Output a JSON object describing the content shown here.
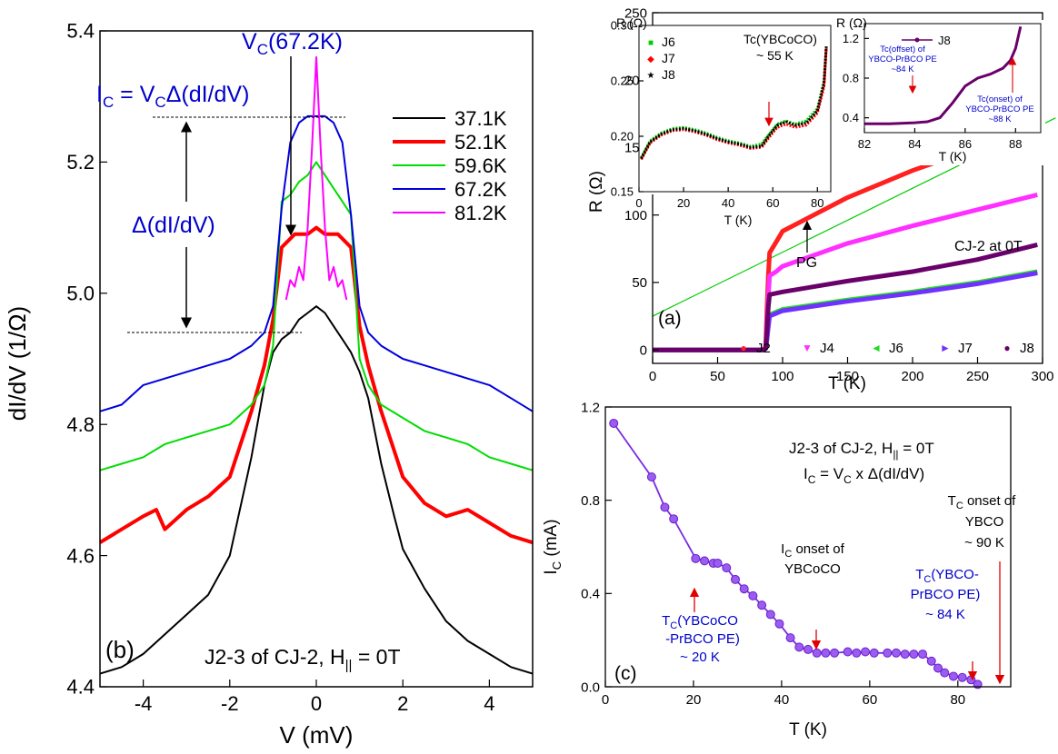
{
  "chart_data": [
    {
      "type": "line",
      "panel": "(b)",
      "xlabel": "V (mV)",
      "ylabel": "dI/dV (1/Ω)",
      "xlim": [
        -5,
        5
      ],
      "ylim": [
        4.4,
        5.4
      ],
      "xticks": [
        -4,
        -2,
        0,
        2,
        4
      ],
      "yticks": [
        4.4,
        4.6,
        4.8,
        5.0,
        5.2,
        5.4
      ],
      "legend_position": "top-right",
      "annotations": {
        "vc_label": "V",
        "vc_sub": "C",
        "vc_rest": "(67.2K)",
        "ic_eq_i": "I",
        "ic_eq_sub": "C",
        "ic_eq_mid": " = V",
        "ic_eq_sub2": "C",
        "ic_eq_rest": "Δ(dI/dV)",
        "delta": "Δ(dI/dV)",
        "panel_label": "(b)",
        "caption_a": "J2-3 of CJ-2, H",
        "caption_sub": "||",
        "caption_b": " = 0T"
      },
      "series": [
        {
          "name": "37.1K",
          "color": "#000000",
          "width": 2,
          "x": [
            -5,
            -4.5,
            -4,
            -3.5,
            -3,
            -2.5,
            -2,
            -1.8,
            -1.5,
            -1.2,
            -1,
            -0.8,
            -0.6,
            -0.4,
            -0.2,
            0,
            0.2,
            0.4,
            0.6,
            0.8,
            1,
            1.2,
            1.5,
            1.8,
            2,
            2.5,
            3,
            3.5,
            4,
            4.5,
            5
          ],
          "values": [
            4.42,
            4.43,
            4.45,
            4.48,
            4.51,
            4.54,
            4.6,
            4.66,
            4.75,
            4.86,
            4.91,
            4.93,
            4.94,
            4.96,
            4.97,
            4.98,
            4.97,
            4.95,
            4.93,
            4.91,
            4.88,
            4.84,
            4.74,
            4.66,
            4.61,
            4.55,
            4.5,
            4.47,
            4.45,
            4.43,
            4.42
          ]
        },
        {
          "name": "52.1K",
          "color": "#ff0000",
          "width": 4,
          "x": [
            -5,
            -4.5,
            -4,
            -3.7,
            -3.5,
            -3,
            -2.5,
            -2,
            -1.8,
            -1.5,
            -1.2,
            -1,
            -0.8,
            -0.5,
            -0.2,
            0,
            0.2,
            0.5,
            0.8,
            1,
            1.2,
            1.5,
            1.8,
            2,
            2.5,
            3,
            3.5,
            4,
            4.5,
            5
          ],
          "values": [
            4.62,
            4.64,
            4.66,
            4.67,
            4.64,
            4.67,
            4.69,
            4.72,
            4.76,
            4.82,
            4.89,
            4.96,
            5.07,
            5.09,
            5.09,
            5.1,
            5.09,
            5.09,
            5.07,
            4.95,
            4.89,
            4.82,
            4.76,
            4.72,
            4.68,
            4.66,
            4.67,
            4.65,
            4.63,
            4.62
          ]
        },
        {
          "name": "59.6K",
          "color": "#00dd00",
          "width": 2,
          "x": [
            -5,
            -4.5,
            -4,
            -3.5,
            -3,
            -2.5,
            -2,
            -1.5,
            -1.2,
            -1,
            -0.8,
            -0.6,
            -0.4,
            -0.2,
            0,
            0.2,
            0.4,
            0.6,
            0.8,
            1,
            1.2,
            1.5,
            2,
            2.5,
            3,
            3.5,
            4,
            4.5,
            5
          ],
          "values": [
            4.73,
            4.74,
            4.75,
            4.77,
            4.78,
            4.79,
            4.8,
            4.83,
            4.86,
            4.92,
            5.14,
            5.15,
            5.17,
            5.18,
            5.2,
            5.18,
            5.16,
            5.14,
            5.12,
            4.9,
            4.86,
            4.83,
            4.81,
            4.79,
            4.78,
            4.77,
            4.75,
            4.74,
            4.73
          ]
        },
        {
          "name": "67.2K",
          "color": "#0000dd",
          "width": 2,
          "x": [
            -5,
            -4.5,
            -4,
            -3.5,
            -3,
            -2.5,
            -2,
            -1.5,
            -1.2,
            -1,
            -0.8,
            -0.6,
            -0.4,
            -0.2,
            0,
            0.2,
            0.4,
            0.6,
            0.8,
            1,
            1.2,
            1.5,
            2,
            2.5,
            3,
            3.5,
            4,
            4.5,
            5
          ],
          "values": [
            4.82,
            4.83,
            4.86,
            4.87,
            4.88,
            4.89,
            4.9,
            4.92,
            4.94,
            4.98,
            5.13,
            5.23,
            5.26,
            5.27,
            5.27,
            5.27,
            5.26,
            5.23,
            5.12,
            4.98,
            4.94,
            4.92,
            4.9,
            4.89,
            4.88,
            4.87,
            4.86,
            4.84,
            4.82
          ]
        },
        {
          "name": "81.2K",
          "color": "#ff00ff",
          "width": 2,
          "x": [
            -0.7,
            -0.6,
            -0.5,
            -0.4,
            -0.3,
            -0.2,
            -0.1,
            0,
            0.1,
            0.2,
            0.3,
            0.4,
            0.5,
            0.6,
            0.7
          ],
          "values": [
            4.99,
            5.02,
            5.01,
            5.04,
            5.02,
            5.1,
            5.22,
            5.36,
            5.22,
            5.1,
            5.02,
            5.04,
            5.01,
            5.02,
            4.99
          ]
        }
      ]
    },
    {
      "type": "scatter",
      "panel": "(a)",
      "xlabel": "T (K)",
      "ylabel": "R (Ω)",
      "xlim": [
        0,
        300
      ],
      "ylim": [
        -10,
        250
      ],
      "xticks": [
        0,
        50,
        100,
        150,
        200,
        250,
        300
      ],
      "yticks": [
        0,
        50,
        100,
        150,
        200,
        250
      ],
      "annotations": {
        "panel_label": "(a)",
        "cj2": "CJ-2 at 0T",
        "pg": "PG"
      },
      "series": [
        {
          "name": "J2",
          "color": "#ff2020",
          "marker": "●",
          "x": [
            0,
            85,
            87,
            88,
            89,
            90,
            95,
            100,
            150,
            200,
            250,
            296
          ],
          "values": [
            0,
            0,
            2,
            30,
            55,
            72,
            80,
            88,
            113,
            133,
            150,
            168
          ]
        },
        {
          "name": "J4",
          "color": "#ff30ff",
          "marker": "▼",
          "x": [
            0,
            85,
            87,
            88,
            89,
            90,
            95,
            100,
            150,
            200,
            250,
            296
          ],
          "values": [
            0,
            0,
            1,
            20,
            40,
            55,
            58,
            62,
            79,
            92,
            104,
            115
          ]
        },
        {
          "name": "J6",
          "color": "#20dd20",
          "marker": "◄",
          "x": [
            0,
            85,
            87,
            88,
            89,
            90,
            100,
            150,
            200,
            250,
            296
          ],
          "values": [
            0,
            0,
            1,
            8,
            18,
            26,
            30,
            37,
            43,
            50,
            58
          ]
        },
        {
          "name": "J7",
          "color": "#7030ff",
          "marker": "►",
          "x": [
            0,
            85,
            87,
            88,
            89,
            90,
            100,
            150,
            200,
            250,
            296
          ],
          "values": [
            0,
            0,
            1,
            8,
            17,
            25,
            29,
            36,
            42,
            49,
            57
          ]
        },
        {
          "name": "J8",
          "color": "#6a006a",
          "marker": "●",
          "x": [
            0,
            85,
            87,
            88,
            89,
            90,
            100,
            150,
            200,
            250,
            296
          ],
          "values": [
            0,
            0,
            1,
            15,
            32,
            41,
            43,
            51,
            58,
            67,
            78
          ]
        }
      ],
      "fit_line": {
        "color": "#00cc00",
        "x": [
          0,
          310
        ],
        "values": [
          25,
          172
        ]
      },
      "insets": [
        {
          "type": "scatter",
          "xlabel": "T (K)",
          "ylabel": "R (Ω)",
          "xlim": [
            0,
            86
          ],
          "ylim": [
            0.15,
            0.3
          ],
          "xticks": [
            0,
            20,
            40,
            60,
            80
          ],
          "yticks": [
            0.15,
            0.2,
            0.25,
            0.3
          ],
          "annotation_line1": "Tc(YBCoCO)",
          "annotation_line2": "~ 55 K",
          "series": [
            {
              "name": "J6",
              "color": "#00cc00",
              "marker": "■",
              "x": [
                1,
                5,
                10,
                15,
                20,
                25,
                30,
                35,
                40,
                45,
                50,
                55,
                58,
                62,
                66,
                70,
                75,
                80,
                83,
                84
              ],
              "values": [
                0.181,
                0.196,
                0.203,
                0.207,
                0.208,
                0.206,
                0.203,
                0.199,
                0.196,
                0.194,
                0.191,
                0.193,
                0.201,
                0.211,
                0.214,
                0.211,
                0.214,
                0.225,
                0.25,
                0.282
              ]
            },
            {
              "name": "J7",
              "color": "#ff0000",
              "marker": "◆",
              "x": [
                1,
                5,
                10,
                15,
                20,
                25,
                30,
                35,
                40,
                45,
                50,
                55,
                58,
                62,
                66,
                70,
                75,
                80,
                83,
                84
              ],
              "values": [
                0.179,
                0.194,
                0.201,
                0.205,
                0.206,
                0.204,
                0.201,
                0.197,
                0.194,
                0.192,
                0.189,
                0.19,
                0.198,
                0.208,
                0.211,
                0.208,
                0.21,
                0.221,
                0.245,
                0.28
              ]
            },
            {
              "name": "J8",
              "color": "#000000",
              "marker": "★",
              "x": [
                1,
                5,
                10,
                15,
                20,
                25,
                30,
                35,
                40,
                45,
                50,
                55,
                58,
                62,
                66,
                70,
                75,
                80,
                83,
                84
              ],
              "values": [
                0.18,
                0.195,
                0.202,
                0.206,
                0.207,
                0.205,
                0.202,
                0.198,
                0.195,
                0.193,
                0.19,
                0.191,
                0.2,
                0.21,
                0.213,
                0.21,
                0.212,
                0.223,
                0.248,
                0.281
              ]
            }
          ]
        },
        {
          "type": "line",
          "xlabel": "T (K)",
          "ylabel": "R (Ω)",
          "xlim": [
            82,
            89
          ],
          "ylim": [
            0.25,
            1.35
          ],
          "xticks": [
            82,
            84,
            86,
            88
          ],
          "yticks": [
            0.4,
            0.8,
            1.2
          ],
          "offset_label": [
            "Tc(offset) of",
            "YBCO-PrBCO PE",
            "~84 K"
          ],
          "onset_label": [
            "Tc(onset) of",
            "YBCO-PrBCO PE",
            "~88 K"
          ],
          "series": [
            {
              "name": "J8",
              "color": "#6a006a",
              "x": [
                82,
                83,
                84,
                84.5,
                85,
                85.5,
                86,
                86.5,
                87,
                87.5,
                87.8,
                88,
                88.2
              ],
              "values": [
                0.34,
                0.34,
                0.35,
                0.36,
                0.4,
                0.55,
                0.72,
                0.8,
                0.84,
                0.9,
                0.98,
                1.1,
                1.32
              ]
            }
          ]
        }
      ]
    },
    {
      "type": "line",
      "panel": "(c)",
      "xlabel": "T (K)",
      "ylabel": "I_C (mA)",
      "xlim": [
        0,
        92
      ],
      "ylim": [
        0,
        1.2
      ],
      "xticks": [
        0,
        20,
        40,
        60,
        80
      ],
      "yticks": [
        0.0,
        0.4,
        0.8,
        1.2
      ],
      "annotations": {
        "panel_label": "(c)",
        "title1_a": "J2-3 of CJ-2, H",
        "title1_sub": "||",
        "title1_b": " = 0T",
        "title2_a": "I",
        "title2_sub": "C",
        "title2_b": " = V",
        "title2_sub2": "C",
        "title2_c": " x Δ(dI/dV)",
        "ybcoco_a": [
          "T",
          "C",
          "(YBCoCO"
        ],
        "ybcoco_b": "-PrBCO PE)",
        "ybcoco_c": "~ 20 K",
        "ic_onset_a": [
          "I",
          "C",
          " onset of"
        ],
        "ic_onset_b": "YBCoCO",
        "prbco_a": [
          "T",
          "C",
          "(YBCO-"
        ],
        "prbco_b": "PrBCO PE)",
        "prbco_c": "~ 84 K",
        "tc_onset_a": [
          "T",
          "C",
          " onset of"
        ],
        "tc_onset_b": "YBCO",
        "tc_onset_c": "~ 90 K"
      },
      "series": [
        {
          "name": "I_C",
          "color": "#7a2be2",
          "x": [
            1.9,
            10.5,
            13.5,
            15.5,
            20.5,
            22.5,
            24.5,
            25.5,
            27.5,
            29.5,
            31.5,
            33.5,
            35.5,
            37.5,
            39.5,
            42,
            44,
            46,
            48,
            50,
            52,
            55,
            57,
            59,
            61,
            64,
            66,
            68,
            70,
            72,
            74,
            75.5,
            77,
            79,
            81,
            83,
            84.5
          ],
          "values": [
            1.13,
            0.9,
            0.77,
            0.72,
            0.55,
            0.54,
            0.53,
            0.53,
            0.51,
            0.46,
            0.42,
            0.39,
            0.35,
            0.31,
            0.27,
            0.21,
            0.17,
            0.16,
            0.145,
            0.145,
            0.145,
            0.15,
            0.145,
            0.15,
            0.145,
            0.145,
            0.145,
            0.14,
            0.14,
            0.14,
            0.11,
            0.08,
            0.06,
            0.045,
            0.04,
            0.03,
            0.01
          ]
        }
      ]
    }
  ]
}
